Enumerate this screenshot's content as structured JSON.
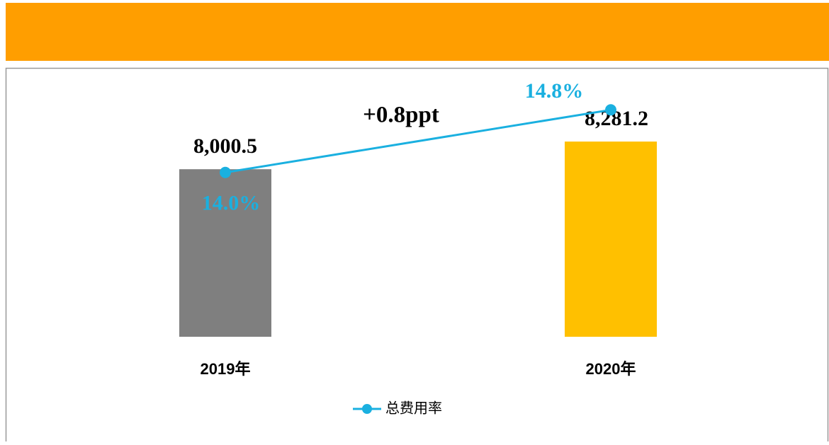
{
  "chart_data": {
    "type": "bar",
    "categories": [
      "2019年",
      "2020年"
    ],
    "values": [
      8000.5,
      8281.2
    ],
    "value_labels": [
      "8,000.5",
      "8,281.2"
    ],
    "colors": [
      "#7f7f7f",
      "#ffc000"
    ],
    "ylim": [
      6300,
      9000
    ],
    "y2lim": [
      11.9,
      15.3
    ],
    "series": [
      {
        "name": "总费用率",
        "type": "line",
        "axis": "y2",
        "color": "#1ab0e0",
        "values": [
          14.0,
          14.8
        ],
        "value_labels": [
          "14.0%",
          "14.8%"
        ]
      }
    ],
    "annotations": [
      "+0.8ppt"
    ],
    "legend": "bottom"
  }
}
